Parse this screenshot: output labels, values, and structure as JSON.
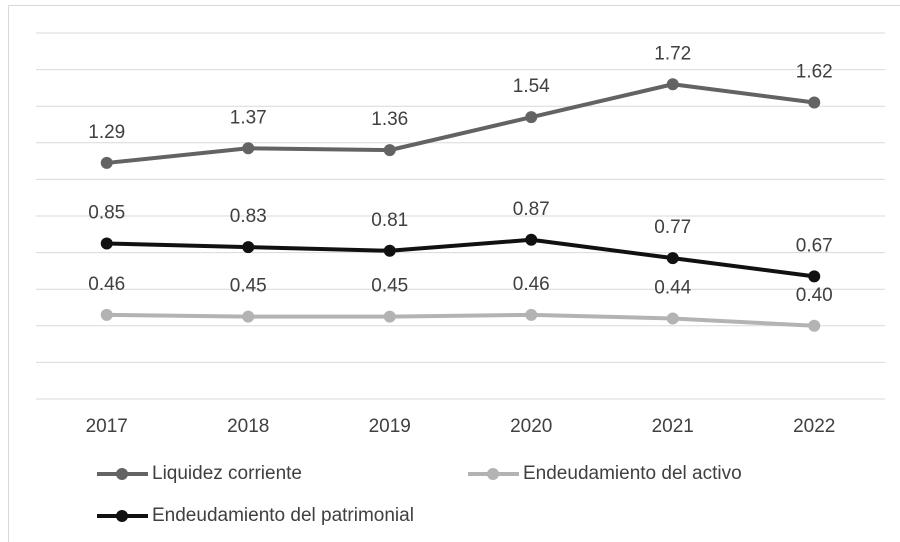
{
  "chart_data": {
    "type": "line",
    "categories": [
      "2017",
      "2018",
      "2019",
      "2020",
      "2021",
      "2022"
    ],
    "series": [
      {
        "name": "Liquidez corriente",
        "color": "#636363",
        "values": [
          1.29,
          1.37,
          1.36,
          1.54,
          1.72,
          1.62
        ]
      },
      {
        "name": "Endeudamiento del activo",
        "color": "#b3b3b3",
        "values": [
          0.46,
          0.45,
          0.45,
          0.46,
          0.44,
          0.4
        ],
        "value_labels": [
          "0.46",
          "0.45",
          "0.45",
          "0.46",
          "0.44",
          "0.40"
        ]
      },
      {
        "name": "Endeudamiento del patrimonial",
        "color": "#111111",
        "values": [
          0.85,
          0.83,
          0.81,
          0.87,
          0.77,
          0.67
        ]
      }
    ],
    "ylim": [
      0,
      2
    ],
    "yticks": [
      0,
      0.2,
      0.4,
      0.6,
      0.8,
      1,
      1.2,
      1.4,
      1.6,
      1.8,
      2
    ],
    "grid": true
  }
}
